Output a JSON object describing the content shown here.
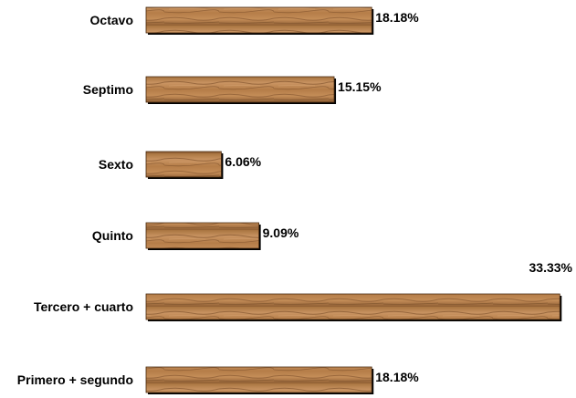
{
  "chart_data": {
    "type": "bar",
    "orientation": "horizontal",
    "categories": [
      "Octavo",
      "Septimo",
      "Sexto",
      "Quinto",
      "Tercero + cuarto",
      "Primero + segundo"
    ],
    "values": [
      18.18,
      15.15,
      6.06,
      9.09,
      33.33,
      18.18
    ],
    "value_labels": [
      "18.18%",
      "15.15%",
      "6.06%",
      "9.09%",
      "33.33%",
      "18.18%"
    ],
    "unit": "%",
    "title": "",
    "xlabel": "",
    "ylabel": "",
    "xlim": [
      0,
      33.33
    ],
    "grid": false,
    "legend": "none",
    "bar_fill": "wood-texture",
    "colors": {
      "wood_light": "#c08a55",
      "wood_mid": "#9e6a3c",
      "wood_dark": "#6e4422",
      "outline": "#000000"
    }
  }
}
